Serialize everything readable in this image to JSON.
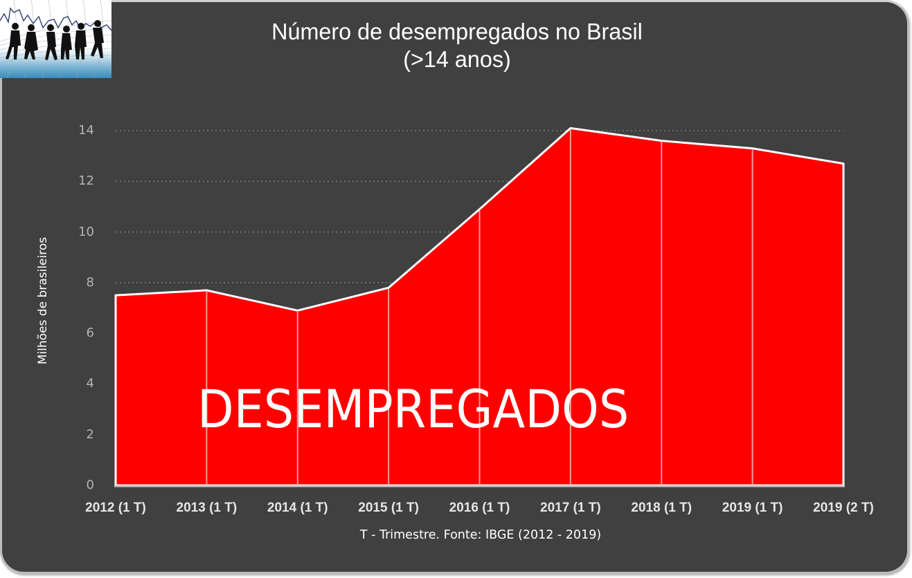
{
  "header": {
    "title_line1": "Número de desempregados no Brasil",
    "title_line2": "(>14 anos)"
  },
  "logo": {
    "icon": "people-walking-over-graph-icon"
  },
  "overlay_text": "DESEMPREGADOS",
  "footnote": "T - Trimestre. Fonte: IBGE (2012 - 2019)",
  "colors": {
    "background": "#404040",
    "area_fill": "#ff0000",
    "area_outline": "#ffffff",
    "gridline": "#7a7a7a",
    "axis_text": "#b4b4b4"
  },
  "chart_data": {
    "type": "area",
    "title": "Número de desempregados no Brasil (>14 anos)",
    "xlabel": "",
    "ylabel": "Milhões de brasileiros",
    "categories": [
      "2012 (1 T)",
      "2013 (1 T)",
      "2014 (1 T)",
      "2015 (1 T)",
      "2016 (1 T)",
      "2017 (1 T)",
      "2018 (1 T)",
      "2019 (1 T)",
      "2019 (2 T)"
    ],
    "series": [
      {
        "name": "Desempregados",
        "values": [
          7.5,
          7.7,
          6.9,
          7.8,
          10.9,
          14.1,
          13.6,
          13.3,
          12.7
        ]
      }
    ],
    "yticks": [
      "0",
      "2",
      "4",
      "6",
      "8",
      "10",
      "12",
      "14"
    ],
    "ylim": [
      0,
      14
    ],
    "grid": "horizontal dotted",
    "legend": "none",
    "annotation": "T - Trimestre. Fonte: IBGE (2012 - 2019)"
  }
}
